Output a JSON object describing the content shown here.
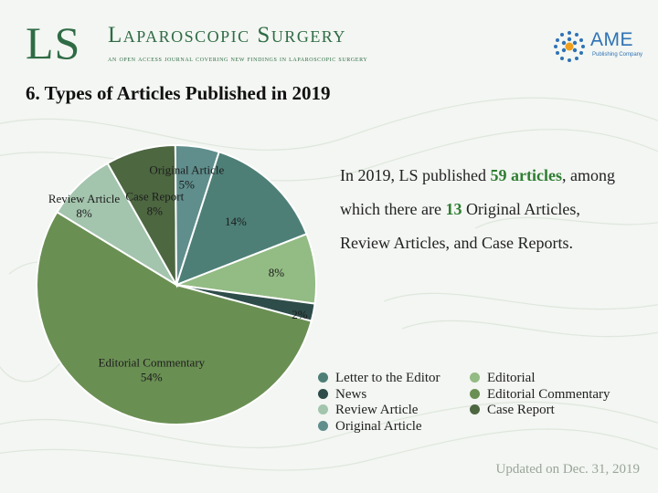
{
  "header": {
    "logo_text": "LS",
    "journal_name": "Laparoscopic Surgery",
    "journal_tagline": "An open access journal covering new findings in laparoscopic surgery",
    "publisher_name": "AME",
    "publisher_sub": "Publishing Company"
  },
  "slide": {
    "title": "6. Types of Articles Published in 2019",
    "summary_prefix": "In 2019, LS published ",
    "summary_articles": "59 articles",
    "summary_mid": ", among which there are ",
    "summary_count": "13",
    "summary_suffix": " Original Articles, Review Articles, and Case Reports.",
    "updated": "Updated on Dec. 31, 2019"
  },
  "colors": {
    "accent": "#2f6b45",
    "highlight": "#2e7d32"
  },
  "chart_data": {
    "type": "pie",
    "slices": [
      {
        "name": "Letter to the Editor",
        "value": 14,
        "label": "14%",
        "color": "#4d7f77"
      },
      {
        "name": "Editorial",
        "value": 8,
        "label": "8%",
        "color": "#93bb84"
      },
      {
        "name": "News",
        "value": 2,
        "label": "2%",
        "color": "#2e4d4a"
      },
      {
        "name": "Editorial Commentary",
        "value": 54,
        "label": "Editorial Commentary\n54%",
        "color": "#6a8f53"
      },
      {
        "name": "Review Article",
        "value": 8,
        "label": "Review Article\n8%",
        "color": "#a3c4ad"
      },
      {
        "name": "Case Report",
        "value": 8,
        "label": "Case Report\n8%",
        "color": "#4d6741"
      },
      {
        "name": "Original Article",
        "value": 5,
        "label": "Original Article\n5%",
        "color": "#5f8e8c"
      }
    ],
    "legend": [
      [
        "Letter to the Editor",
        "Editorial"
      ],
      [
        "News",
        "Editorial Commentary"
      ],
      [
        "Review Article",
        "Case Report"
      ],
      [
        "Original Article"
      ]
    ]
  }
}
